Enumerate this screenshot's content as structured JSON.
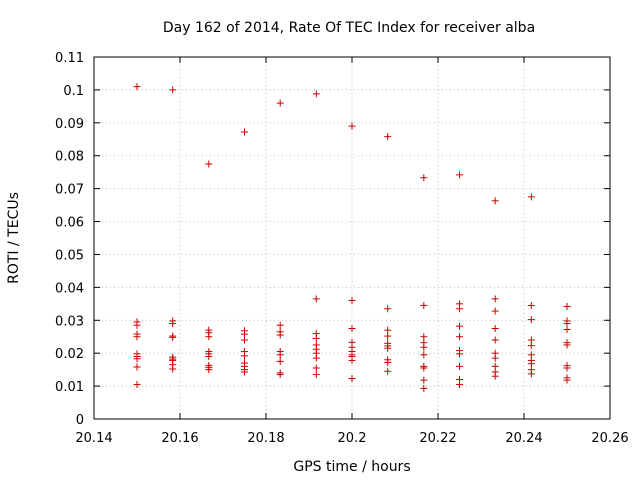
{
  "chart_data": {
    "type": "scatter",
    "title": "Day 162 of 2014, Rate Of TEC Index for receiver alba",
    "xlabel": "GPS time / hours",
    "ylabel": "ROTI / TECUs",
    "xlim": [
      20.14,
      20.26
    ],
    "ylim": [
      0,
      0.11
    ],
    "xticks": [
      "20.14",
      "20.16",
      "20.18",
      "20.2",
      "20.22",
      "20.24",
      "20.26"
    ],
    "yticks": [
      "0",
      "0.01",
      "0.02",
      "0.03",
      "0.04",
      "0.05",
      "0.06",
      "0.07",
      "0.08",
      "0.09",
      "0.1",
      "0.11"
    ],
    "xtick_values": [
      20.14,
      20.16,
      20.18,
      20.2,
      20.22,
      20.24,
      20.26
    ],
    "ytick_values": [
      0,
      0.01,
      0.02,
      0.03,
      0.04,
      0.05,
      0.06,
      0.07,
      0.08,
      0.09,
      0.1,
      0.11
    ],
    "grid": true,
    "marker": "+",
    "color": "#cc0000",
    "series": [
      {
        "name": "ROTI",
        "points": [
          [
            20.15,
            0.101
          ],
          [
            20.15,
            0.0295
          ],
          [
            20.15,
            0.0285
          ],
          [
            20.15,
            0.0258
          ],
          [
            20.15,
            0.025
          ],
          [
            20.15,
            0.0198
          ],
          [
            20.15,
            0.019
          ],
          [
            20.15,
            0.0183
          ],
          [
            20.15,
            0.0158
          ],
          [
            20.15,
            0.0105
          ],
          [
            20.1583,
            0.1
          ],
          [
            20.1583,
            0.0298
          ],
          [
            20.1583,
            0.029
          ],
          [
            20.1583,
            0.0252
          ],
          [
            20.1583,
            0.0248
          ],
          [
            20.1583,
            0.0188
          ],
          [
            20.1583,
            0.0182
          ],
          [
            20.1583,
            0.0178
          ],
          [
            20.1583,
            0.0165
          ],
          [
            20.1583,
            0.0152
          ],
          [
            20.1667,
            0.0775
          ],
          [
            20.1667,
            0.027
          ],
          [
            20.1667,
            0.0262
          ],
          [
            20.1667,
            0.025
          ],
          [
            20.1667,
            0.0205
          ],
          [
            20.1667,
            0.0198
          ],
          [
            20.1667,
            0.019
          ],
          [
            20.1667,
            0.0163
          ],
          [
            20.1667,
            0.0157
          ],
          [
            20.1667,
            0.015
          ],
          [
            20.175,
            0.0872
          ],
          [
            20.175,
            0.0268
          ],
          [
            20.175,
            0.0258
          ],
          [
            20.175,
            0.024
          ],
          [
            20.175,
            0.0205
          ],
          [
            20.175,
            0.0192
          ],
          [
            20.175,
            0.017
          ],
          [
            20.175,
            0.016
          ],
          [
            20.175,
            0.015
          ],
          [
            20.175,
            0.0143
          ],
          [
            20.1833,
            0.096
          ],
          [
            20.1833,
            0.0285
          ],
          [
            20.1833,
            0.0265
          ],
          [
            20.1833,
            0.0255
          ],
          [
            20.1833,
            0.0205
          ],
          [
            20.1833,
            0.0195
          ],
          [
            20.1833,
            0.0175
          ],
          [
            20.1833,
            0.014
          ],
          [
            20.1833,
            0.0135
          ],
          [
            20.1917,
            0.0988
          ],
          [
            20.1917,
            0.0365
          ],
          [
            20.1917,
            0.026
          ],
          [
            20.1917,
            0.0245
          ],
          [
            20.1917,
            0.0225
          ],
          [
            20.1917,
            0.0212
          ],
          [
            20.1917,
            0.02
          ],
          [
            20.1917,
            0.0185
          ],
          [
            20.1917,
            0.0155
          ],
          [
            20.1917,
            0.0135
          ],
          [
            20.2,
            0.089
          ],
          [
            20.2,
            0.036
          ],
          [
            20.2,
            0.0275
          ],
          [
            20.2,
            0.0233
          ],
          [
            20.2,
            0.0218
          ],
          [
            20.2,
            0.0205
          ],
          [
            20.2,
            0.0195
          ],
          [
            20.2,
            0.019
          ],
          [
            20.2,
            0.0178
          ],
          [
            20.2,
            0.0123
          ],
          [
            20.2083,
            0.0858
          ],
          [
            20.2083,
            0.0335
          ],
          [
            20.2083,
            0.027
          ],
          [
            20.2083,
            0.0252
          ],
          [
            20.2083,
            0.023
          ],
          [
            20.2083,
            0.0222
          ],
          [
            20.2083,
            0.0215
          ],
          [
            20.2083,
            0.018
          ],
          [
            20.2083,
            0.0172
          ],
          [
            20.2083,
            0.0145
          ],
          [
            20.2167,
            0.0733
          ],
          [
            20.2167,
            0.0345
          ],
          [
            20.2167,
            0.025
          ],
          [
            20.2167,
            0.0232
          ],
          [
            20.2167,
            0.0218
          ],
          [
            20.2167,
            0.0195
          ],
          [
            20.2167,
            0.016
          ],
          [
            20.2167,
            0.0155
          ],
          [
            20.2167,
            0.0118
          ],
          [
            20.2167,
            0.0093
          ],
          [
            20.225,
            0.0742
          ],
          [
            20.225,
            0.035
          ],
          [
            20.225,
            0.0335
          ],
          [
            20.225,
            0.0282
          ],
          [
            20.225,
            0.025
          ],
          [
            20.225,
            0.0208
          ],
          [
            20.225,
            0.0198
          ],
          [
            20.225,
            0.016
          ],
          [
            20.225,
            0.012
          ],
          [
            20.225,
            0.0105
          ],
          [
            20.2333,
            0.0663
          ],
          [
            20.2333,
            0.0365
          ],
          [
            20.2333,
            0.0328
          ],
          [
            20.2333,
            0.0275
          ],
          [
            20.2333,
            0.024
          ],
          [
            20.2333,
            0.02
          ],
          [
            20.2333,
            0.0185
          ],
          [
            20.2333,
            0.016
          ],
          [
            20.2333,
            0.0143
          ],
          [
            20.2333,
            0.013
          ],
          [
            20.2417,
            0.0675
          ],
          [
            20.2417,
            0.0345
          ],
          [
            20.2417,
            0.0302
          ],
          [
            20.2417,
            0.024
          ],
          [
            20.2417,
            0.0223
          ],
          [
            20.2417,
            0.0195
          ],
          [
            20.2417,
            0.0178
          ],
          [
            20.2417,
            0.0168
          ],
          [
            20.2417,
            0.015
          ],
          [
            20.2417,
            0.0137
          ],
          [
            20.25,
            0.0342
          ],
          [
            20.25,
            0.0298
          ],
          [
            20.25,
            0.029
          ],
          [
            20.25,
            0.0272
          ],
          [
            20.25,
            0.0232
          ],
          [
            20.25,
            0.0225
          ],
          [
            20.25,
            0.0162
          ],
          [
            20.25,
            0.0155
          ],
          [
            20.25,
            0.0125
          ],
          [
            20.25,
            0.0118
          ]
        ]
      }
    ]
  }
}
